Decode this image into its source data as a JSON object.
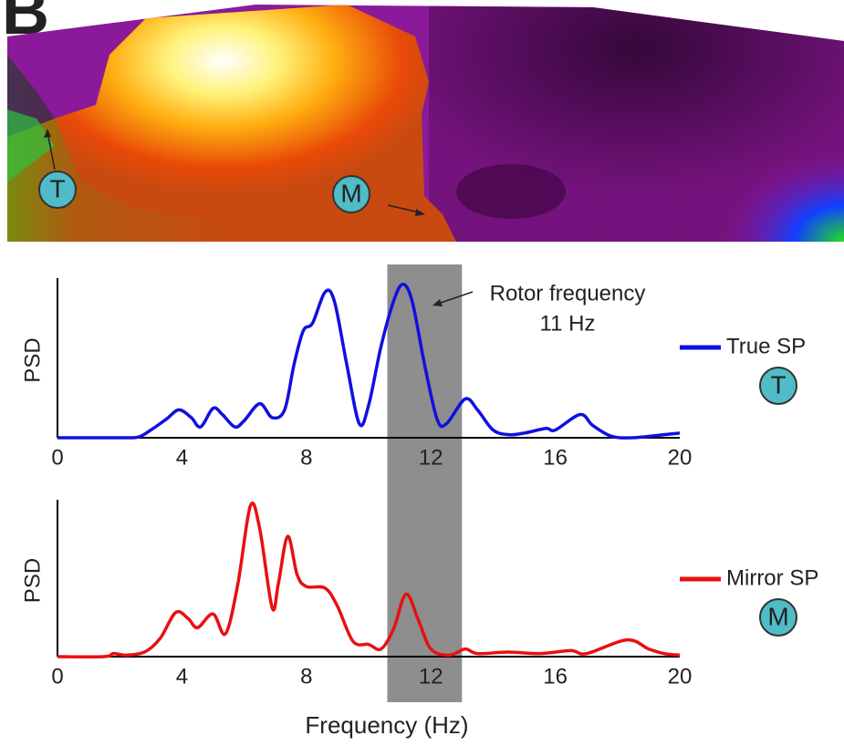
{
  "map": {
    "panel_label": "B",
    "markers": [
      "T",
      "M"
    ]
  },
  "chart_data": [
    {
      "type": "line",
      "ylabel": "PSD",
      "annotation": [
        "Rotor frequency",
        "11 Hz"
      ],
      "band": [
        10.6,
        13.0
      ],
      "x": [
        0,
        2,
        2.6,
        3,
        3.5,
        3.9,
        4.3,
        4.6,
        5.0,
        5.3,
        5.7,
        6.0,
        6.5,
        6.9,
        7.3,
        7.6,
        7.9,
        8.2,
        8.6,
        8.9,
        9.3,
        9.7,
        10.0,
        10.4,
        10.8,
        11.1,
        11.4,
        11.8,
        12.2,
        12.5,
        13.1,
        13.5,
        14.0,
        14.5,
        15.0,
        15.7,
        16.0,
        16.8,
        17.2,
        17.8,
        18.5,
        19.5,
        20
      ],
      "series": [
        {
          "name": "True SP",
          "marker": "T",
          "color": "#1010e0",
          "values": [
            0,
            0,
            0.005,
            0.05,
            0.12,
            0.18,
            0.13,
            0.07,
            0.19,
            0.15,
            0.07,
            0.11,
            0.22,
            0.13,
            0.18,
            0.47,
            0.69,
            0.74,
            0.94,
            0.88,
            0.47,
            0.09,
            0.21,
            0.59,
            0.88,
            0.99,
            0.88,
            0.47,
            0.12,
            0.09,
            0.25,
            0.18,
            0.05,
            0.02,
            0.03,
            0.06,
            0.05,
            0.15,
            0.08,
            0.01,
            0,
            0.02,
            0.03
          ]
        }
      ],
      "xlim": [
        0,
        20
      ],
      "xticks": [
        0,
        4,
        8,
        12,
        16,
        20
      ],
      "ylim": [
        0,
        1
      ]
    },
    {
      "type": "line",
      "ylabel": "PSD",
      "xlabel": "Frequency (Hz)",
      "x": [
        0,
        1.5,
        1.8,
        2.2,
        2.8,
        3.3,
        3.8,
        4.2,
        4.5,
        5.0,
        5.4,
        5.8,
        6.2,
        6.5,
        6.9,
        7.1,
        7.4,
        7.7,
        8.0,
        8.6,
        9.0,
        9.5,
        10.0,
        10.4,
        10.8,
        11.2,
        11.6,
        12.0,
        12.6,
        13.1,
        13.5,
        14.5,
        15.5,
        16.5,
        17.0,
        18.3,
        19.0,
        19.5,
        20
      ],
      "series": [
        {
          "name": "Mirror SP",
          "marker": "M",
          "color": "#e81010",
          "values": [
            0,
            0,
            0.02,
            0.01,
            0.03,
            0.12,
            0.29,
            0.25,
            0.19,
            0.28,
            0.15,
            0.48,
            0.99,
            0.84,
            0.32,
            0.48,
            0.79,
            0.54,
            0.46,
            0.45,
            0.33,
            0.1,
            0.08,
            0.05,
            0.18,
            0.41,
            0.24,
            0.05,
            0.01,
            0.05,
            0.02,
            0.03,
            0.02,
            0.04,
            0.02,
            0.11,
            0.05,
            0.02,
            0.01
          ]
        }
      ],
      "xlim": [
        0,
        20
      ],
      "xticks": [
        0,
        4,
        8,
        12,
        16,
        20
      ],
      "ylim": [
        0,
        1
      ]
    }
  ]
}
